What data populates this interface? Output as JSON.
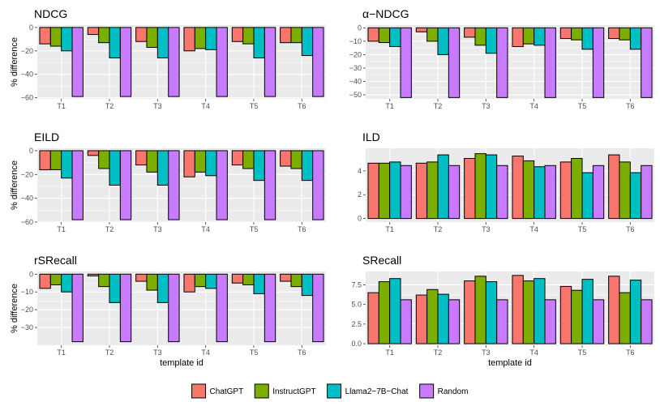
{
  "chart_data": {
    "type": "bar",
    "layout": "facets-3x2",
    "categories": [
      "T1",
      "T2",
      "T3",
      "T4",
      "T5",
      "T6"
    ],
    "xlabel": "template id",
    "ylabel": "% difference",
    "grid": true,
    "legend_position": "bottom",
    "series_names": [
      "ChatGPT",
      "InstructGPT",
      "Llama2−7B−Chat",
      "Random"
    ],
    "series_colors": [
      "#F8766D",
      "#7CAE00",
      "#00BFC4",
      "#C77CFF"
    ],
    "panels": [
      {
        "title": "NDCG",
        "ylim": [
          -61,
          2
        ],
        "yticks": [
          0,
          -20,
          -40,
          -60
        ],
        "ytick_labels": [
          "0",
          "−20",
          "−40",
          "−60"
        ],
        "series": [
          {
            "name": "ChatGPT",
            "values": [
              -14,
              -6,
              -12,
              -20,
              -12,
              -13
            ]
          },
          {
            "name": "InstructGPT",
            "values": [
              -16,
              -13,
              -17,
              -18,
              -14,
              -13
            ]
          },
          {
            "name": "Llama2−7B−Chat",
            "values": [
              -20,
              -26,
              -26,
              -19,
              -26,
              -24
            ]
          },
          {
            "name": "Random",
            "values": [
              -59,
              -59,
              -59,
              -59,
              -59,
              -59
            ]
          }
        ]
      },
      {
        "title": "α−NDCG",
        "ylim": [
          -53,
          2
        ],
        "yticks": [
          0,
          -10,
          -20,
          -30,
          -40,
          -50
        ],
        "ytick_labels": [
          "0",
          "−10",
          "−20",
          "−30",
          "−40",
          "−50"
        ],
        "series": [
          {
            "name": "ChatGPT",
            "values": [
              -10,
              -3,
              -7,
              -14,
              -8,
              -8
            ]
          },
          {
            "name": "InstructGPT",
            "values": [
              -11,
              -10,
              -13,
              -12,
              -9,
              -9
            ]
          },
          {
            "name": "Llama2−7B−Chat",
            "values": [
              -14,
              -20,
              -19,
              -13,
              -16,
              -16
            ]
          },
          {
            "name": "Random",
            "values": [
              -52,
              -52,
              -52,
              -52,
              -52,
              -52
            ]
          }
        ]
      },
      {
        "title": "EILD",
        "ylim": [
          -60,
          2
        ],
        "yticks": [
          0,
          -20,
          -40,
          -60
        ],
        "ytick_labels": [
          "0",
          "−20",
          "−40",
          "−60"
        ],
        "series": [
          {
            "name": "ChatGPT",
            "values": [
              -16,
              -4,
              -12,
              -22,
              -12,
              -13
            ]
          },
          {
            "name": "InstructGPT",
            "values": [
              -16,
              -15,
              -18,
              -18,
              -15,
              -15
            ]
          },
          {
            "name": "Llama2−7B−Chat",
            "values": [
              -23,
              -29,
              -29,
              -21,
              -25,
              -25
            ]
          },
          {
            "name": "Random",
            "values": [
              -58,
              -58,
              -58,
              -58,
              -58,
              -58
            ]
          }
        ]
      },
      {
        "title": "ILD",
        "ylim": [
          -0.3,
          5.9
        ],
        "yticks": [
          0,
          2,
          4
        ],
        "ytick_labels": [
          "0",
          "2",
          "4"
        ],
        "series": [
          {
            "name": "ChatGPT",
            "values": [
              4.65,
              4.65,
              5.05,
              5.25,
              4.75,
              5.35
            ]
          },
          {
            "name": "InstructGPT",
            "values": [
              4.65,
              4.75,
              5.45,
              4.85,
              5.05,
              4.75
            ]
          },
          {
            "name": "Llama2−7B−Chat",
            "values": [
              4.75,
              5.35,
              5.35,
              4.35,
              3.85,
              3.85
            ]
          },
          {
            "name": "Random",
            "values": [
              4.45,
              4.45,
              4.45,
              4.45,
              4.45,
              4.45
            ]
          }
        ]
      },
      {
        "title": "rSRecall",
        "ylim": [
          -40,
          1.5
        ],
        "yticks": [
          0,
          -10,
          -20,
          -30
        ],
        "ytick_labels": [
          "0",
          "−10",
          "−20",
          "−30"
        ],
        "series": [
          {
            "name": "ChatGPT",
            "values": [
              -8,
              -1,
              -4,
              -10,
              -5,
              -4
            ]
          },
          {
            "name": "InstructGPT",
            "values": [
              -6,
              -7,
              -9,
              -7,
              -6,
              -7
            ]
          },
          {
            "name": "Llama2−7B−Chat",
            "values": [
              -10,
              -16,
              -16,
              -8,
              -11,
              -12
            ]
          },
          {
            "name": "Random",
            "values": [
              -38,
              -38,
              -38,
              -38,
              -38,
              -38
            ]
          }
        ]
      },
      {
        "title": "SRecall",
        "ylim": [
          -0.2,
          9.2
        ],
        "yticks": [
          0.0,
          2.5,
          5.0,
          7.5
        ],
        "ytick_labels": [
          "0.0",
          "2.5",
          "5.0",
          "7.5"
        ],
        "series": [
          {
            "name": "ChatGPT",
            "values": [
              6.5,
              6.2,
              8.0,
              8.7,
              7.3,
              8.6
            ]
          },
          {
            "name": "InstructGPT",
            "values": [
              7.9,
              6.9,
              8.6,
              8.0,
              6.8,
              6.5
            ]
          },
          {
            "name": "Llama2−7B−Chat",
            "values": [
              8.3,
              6.3,
              7.9,
              8.3,
              8.2,
              8.1
            ]
          },
          {
            "name": "Random",
            "values": [
              5.6,
              5.6,
              5.6,
              5.6,
              5.6,
              5.6
            ]
          }
        ]
      }
    ]
  }
}
